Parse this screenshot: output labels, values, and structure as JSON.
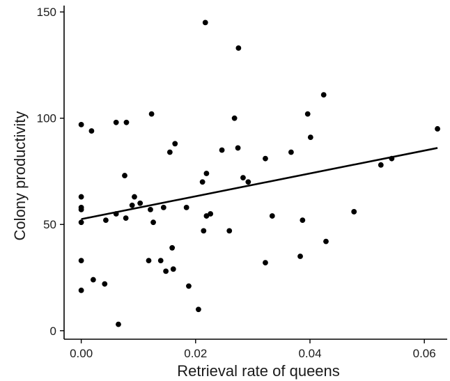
{
  "chart_data": {
    "type": "scatter",
    "title": "",
    "xlabel": "Retrieval rate of queens",
    "ylabel": "Colony productivity",
    "xlim": [
      -0.003,
      0.064
    ],
    "ylim": [
      -4,
      153
    ],
    "x_ticks": [
      0.0,
      0.02,
      0.04,
      0.06
    ],
    "x_tick_labels": [
      "0.00",
      "0.02",
      "0.04",
      "0.06"
    ],
    "y_ticks": [
      0,
      50,
      100,
      150
    ],
    "y_tick_labels": [
      "0",
      "50",
      "100",
      "150"
    ],
    "grid": false,
    "legend": "none",
    "marker_color": "#000000",
    "series": [
      {
        "points": [
          [
            0.0,
            97
          ],
          [
            0.0,
            63
          ],
          [
            0.0,
            58
          ],
          [
            0.0,
            57
          ],
          [
            0.0,
            51
          ],
          [
            0.0,
            33
          ],
          [
            0.0,
            19
          ],
          [
            0.0018,
            94
          ],
          [
            0.0021,
            24
          ],
          [
            0.0041,
            22
          ],
          [
            0.0043,
            52
          ],
          [
            0.0061,
            98
          ],
          [
            0.0061,
            55
          ],
          [
            0.0065,
            3
          ],
          [
            0.0076,
            73
          ],
          [
            0.0079,
            98
          ],
          [
            0.0078,
            53
          ],
          [
            0.0089,
            59
          ],
          [
            0.0093,
            63
          ],
          [
            0.0103,
            60
          ],
          [
            0.0118,
            33
          ],
          [
            0.0121,
            57
          ],
          [
            0.0123,
            102
          ],
          [
            0.0126,
            51
          ],
          [
            0.0139,
            33
          ],
          [
            0.0144,
            58
          ],
          [
            0.0148,
            28
          ],
          [
            0.0155,
            84
          ],
          [
            0.0159,
            39
          ],
          [
            0.0161,
            29
          ],
          [
            0.0164,
            88
          ],
          [
            0.0184,
            58
          ],
          [
            0.0188,
            21
          ],
          [
            0.0205,
            10
          ],
          [
            0.0212,
            70
          ],
          [
            0.0214,
            47
          ],
          [
            0.0217,
            145
          ],
          [
            0.0219,
            54
          ],
          [
            0.0219,
            74
          ],
          [
            0.0226,
            55
          ],
          [
            0.0246,
            85
          ],
          [
            0.0259,
            47
          ],
          [
            0.0268,
            100
          ],
          [
            0.0274,
            86
          ],
          [
            0.0275,
            133
          ],
          [
            0.0283,
            72
          ],
          [
            0.0292,
            70
          ],
          [
            0.0322,
            81
          ],
          [
            0.0322,
            32
          ],
          [
            0.0334,
            54
          ],
          [
            0.0367,
            84
          ],
          [
            0.0383,
            35
          ],
          [
            0.0387,
            52
          ],
          [
            0.0396,
            102
          ],
          [
            0.0401,
            91
          ],
          [
            0.0424,
            111
          ],
          [
            0.0428,
            42
          ],
          [
            0.0477,
            56
          ],
          [
            0.0524,
            78
          ],
          [
            0.0543,
            81
          ],
          [
            0.0623,
            95
          ]
        ]
      }
    ],
    "fit_line": {
      "x": [
        0.0,
        0.0623
      ],
      "y": [
        52.5,
        86
      ]
    }
  }
}
